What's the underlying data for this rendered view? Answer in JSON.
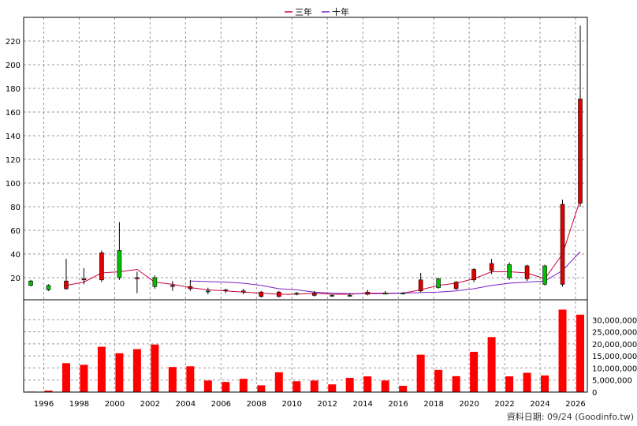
{
  "colors": {
    "ma3": "#cc0044",
    "ma10": "#7a1fc2",
    "up": "#e00000",
    "down": "#00c000",
    "volume": "#ff0000",
    "grid": "#9a9a9a",
    "axis": "#000000"
  },
  "chart_data": [
    {
      "type": "candlestick",
      "legend": [
        {
          "name": "三年",
          "color": "#cc0044"
        },
        {
          "name": "十年",
          "color": "#7a1fc2"
        }
      ],
      "legend_position": "top-center",
      "grid": true,
      "yaxis_position": "left",
      "ylim": [
        0,
        235
      ],
      "yticks": [
        "20",
        "40",
        "60",
        "80",
        "100",
        "120",
        "140",
        "160",
        "180",
        "200",
        "220"
      ],
      "ytick_values": [
        20,
        40,
        60,
        80,
        100,
        120,
        140,
        160,
        180,
        200,
        220
      ],
      "xlim": [
        1994.6,
        2026.4
      ],
      "xticks": [
        "1996",
        "1998",
        "2000",
        "2002",
        "2004",
        "2006",
        "2008",
        "2010",
        "2012",
        "2014",
        "2016",
        "2018",
        "2020",
        "2022",
        "2024",
        "2026"
      ],
      "xtick_values": [
        1996,
        1998,
        2000,
        2002,
        2004,
        2006,
        2008,
        2010,
        2012,
        2014,
        2016,
        2018,
        2020,
        2022,
        2024,
        2026
      ],
      "candles": [
        {
          "x": 1995,
          "open": 13,
          "close": 17,
          "high": 18,
          "low": 12
        },
        {
          "x": 1996,
          "open": 9,
          "close": 13,
          "high": 14,
          "low": 8
        },
        {
          "x": 1997,
          "open": 17,
          "close": 10,
          "high": 36,
          "low": 9
        },
        {
          "x": 1998,
          "open": 19,
          "close": 18,
          "high": 28,
          "low": 14
        },
        {
          "x": 1999,
          "open": 41,
          "close": 18,
          "high": 43,
          "low": 16
        },
        {
          "x": 2000,
          "open": 20,
          "close": 43,
          "high": 67,
          "low": 18
        },
        {
          "x": 2001,
          "open": 20,
          "close": 19,
          "high": 25,
          "low": 6
        },
        {
          "x": 2002,
          "open": 12,
          "close": 20,
          "high": 22,
          "low": 10
        },
        {
          "x": 2003,
          "open": 13,
          "close": 12,
          "high": 17,
          "low": 8
        },
        {
          "x": 2004,
          "open": 12,
          "close": 10,
          "high": 18,
          "low": 8
        },
        {
          "x": 2005,
          "open": 8,
          "close": 8,
          "high": 11,
          "low": 5
        },
        {
          "x": 2006,
          "open": 9,
          "close": 8,
          "high": 10,
          "low": 6
        },
        {
          "x": 2007,
          "open": 8,
          "close": 7,
          "high": 10,
          "low": 5
        },
        {
          "x": 2008,
          "open": 7,
          "close": 3,
          "high": 8,
          "low": 2
        },
        {
          "x": 2009,
          "open": 7,
          "close": 3,
          "high": 8,
          "low": 2
        },
        {
          "x": 2010,
          "open": 6,
          "close": 6,
          "high": 7,
          "low": 4
        },
        {
          "x": 2011,
          "open": 6,
          "close": 4,
          "high": 8,
          "low": 3
        },
        {
          "x": 2012,
          "open": 4,
          "close": 4,
          "high": 5,
          "low": 3
        },
        {
          "x": 2013,
          "open": 4,
          "close": 4,
          "high": 6,
          "low": 3
        },
        {
          "x": 2014,
          "open": 7,
          "close": 5,
          "high": 9,
          "low": 4
        },
        {
          "x": 2015,
          "open": 6,
          "close": 6,
          "high": 8,
          "low": 5
        },
        {
          "x": 2016,
          "open": 6,
          "close": 6,
          "high": 7,
          "low": 5
        },
        {
          "x": 2017,
          "open": 18,
          "close": 8,
          "high": 24,
          "low": 7
        },
        {
          "x": 2018,
          "open": 11,
          "close": 19,
          "high": 20,
          "low": 10
        },
        {
          "x": 2019,
          "open": 16,
          "close": 10,
          "high": 17,
          "low": 9
        },
        {
          "x": 2020,
          "open": 27,
          "close": 18,
          "high": 28,
          "low": 16
        },
        {
          "x": 2021,
          "open": 32,
          "close": 26,
          "high": 36,
          "low": 23
        },
        {
          "x": 2022,
          "open": 20,
          "close": 31,
          "high": 33,
          "low": 18
        },
        {
          "x": 2023,
          "open": 30,
          "close": 19,
          "high": 31,
          "low": 17
        },
        {
          "x": 2024,
          "open": 14,
          "close": 30,
          "high": 31,
          "low": 13
        },
        {
          "x": 2025,
          "open": 82,
          "close": 14,
          "high": 86,
          "low": 12
        },
        {
          "x": 2026,
          "open": 171,
          "close": 83,
          "high": 233,
          "low": 80
        }
      ],
      "series": [
        {
          "name": "三年",
          "color": "#cc0044",
          "points": [
            [
              1997,
              13
            ],
            [
              1998,
              16
            ],
            [
              1999,
              24
            ],
            [
              2000,
              25
            ],
            [
              2001,
              27
            ],
            [
              2002,
              16
            ],
            [
              2003,
              14
            ],
            [
              2004,
              11
            ],
            [
              2005,
              9
            ],
            [
              2006,
              8
            ],
            [
              2007,
              7
            ],
            [
              2008,
              6
            ],
            [
              2009,
              5
            ],
            [
              2010,
              5
            ],
            [
              2011,
              6
            ],
            [
              2012,
              5
            ],
            [
              2013,
              5
            ],
            [
              2014,
              6
            ],
            [
              2015,
              6
            ],
            [
              2016,
              6
            ],
            [
              2017,
              9
            ],
            [
              2018,
              13
            ],
            [
              2019,
              15
            ],
            [
              2020,
              19
            ],
            [
              2021,
              25
            ],
            [
              2022,
              25
            ],
            [
              2023,
              24
            ],
            [
              2024,
              19
            ],
            [
              2025,
              40
            ],
            [
              2026,
              86
            ]
          ]
        },
        {
          "name": "十年",
          "color": "#7a1fc2",
          "points": [
            [
              2004,
              17
            ],
            [
              2005,
              16.5
            ],
            [
              2006,
              16
            ],
            [
              2007,
              15
            ],
            [
              2008,
              13
            ],
            [
              2009,
              10
            ],
            [
              2010,
              9
            ],
            [
              2011,
              7
            ],
            [
              2012,
              6
            ],
            [
              2013,
              5.5
            ],
            [
              2014,
              5.5
            ],
            [
              2015,
              5.5
            ],
            [
              2016,
              6
            ],
            [
              2017,
              6.5
            ],
            [
              2018,
              7
            ],
            [
              2019,
              8
            ],
            [
              2020,
              10
            ],
            [
              2021,
              13
            ],
            [
              2022,
              15
            ],
            [
              2023,
              16
            ],
            [
              2024,
              17
            ],
            [
              2025,
              26
            ],
            [
              2026,
              42
            ]
          ]
        }
      ]
    },
    {
      "type": "bar",
      "yaxis_position": "right",
      "ylim": [
        0,
        35000000
      ],
      "yticks": [
        "0",
        "5,000,000",
        "10,000,000",
        "15,000,000",
        "20,000,000",
        "25,000,000",
        "30,000,000"
      ],
      "ytick_values": [
        0,
        5000000,
        10000000,
        15000000,
        20000000,
        25000000,
        30000000
      ],
      "categories": [
        1995,
        1996,
        1997,
        1998,
        1999,
        2000,
        2001,
        2002,
        2003,
        2004,
        2005,
        2006,
        2007,
        2008,
        2009,
        2010,
        2011,
        2012,
        2013,
        2014,
        2015,
        2016,
        2017,
        2018,
        2019,
        2020,
        2021,
        2022,
        2023,
        2024,
        2025,
        2026
      ],
      "values": [
        200000,
        600000,
        12000000,
        11300000,
        18800000,
        16100000,
        17800000,
        19700000,
        10400000,
        10700000,
        4800000,
        4200000,
        5500000,
        2800000,
        8200000,
        4500000,
        4800000,
        3200000,
        5900000,
        6500000,
        4800000,
        2600000,
        15500000,
        9200000,
        6600000,
        16700000,
        22800000,
        6500000,
        8000000,
        6900000,
        34200000,
        32100000
      ]
    }
  ],
  "credit": "資料日期: 09/24  (Goodinfo.tw)"
}
